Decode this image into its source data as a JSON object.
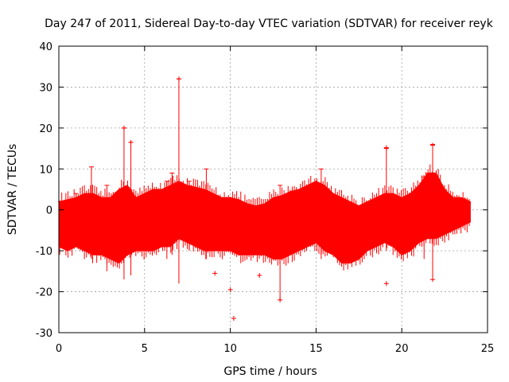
{
  "chart_data": {
    "type": "scatter",
    "title": "Day 247 of 2011, Sidereal Day-to-day VTEC variation (SDTVAR) for receiver reyk",
    "xlabel": "GPS time / hours",
    "ylabel": "SDTVAR / TECUs",
    "xlim": [
      0,
      25
    ],
    "ylim": [
      -30,
      40
    ],
    "xticks": [
      0,
      5,
      10,
      15,
      20,
      25
    ],
    "yticks": [
      -30,
      -20,
      -10,
      0,
      10,
      20,
      30,
      40
    ],
    "grid": true,
    "series_color": "#ff0000",
    "marker": "plus",
    "envelope": {
      "hours": [
        0,
        0.5,
        1,
        1.5,
        2,
        2.5,
        3,
        3.5,
        4,
        4.5,
        5,
        5.5,
        6,
        6.5,
        7,
        7.5,
        8,
        8.5,
        9,
        9.5,
        10,
        10.5,
        11,
        11.5,
        12,
        12.5,
        13,
        13.5,
        14,
        14.5,
        15,
        15.5,
        16,
        16.5,
        17,
        17.5,
        18,
        18.5,
        19,
        19.5,
        20,
        20.5,
        21,
        21.5,
        22,
        22.5,
        23,
        23.5,
        24
      ],
      "upper": [
        2,
        2.5,
        3,
        4,
        4,
        3,
        3,
        5,
        6,
        3,
        4,
        5,
        5,
        6,
        7,
        6,
        5.5,
        5,
        4,
        3,
        3,
        2.5,
        1.5,
        1,
        1.5,
        3,
        3.5,
        4.5,
        5,
        6,
        7,
        6,
        4,
        3,
        2,
        1,
        2,
        3,
        4,
        4,
        3,
        4,
        6,
        9,
        9,
        5,
        3,
        3,
        2
      ],
      "lower": [
        -9,
        -10,
        -9,
        -10,
        -11,
        -11,
        -12,
        -13,
        -11,
        -10,
        -10,
        -10,
        -9,
        -9,
        -7,
        -8,
        -9,
        -10,
        -10,
        -10,
        -10,
        -11,
        -11,
        -11,
        -11,
        -12,
        -12,
        -11,
        -10,
        -9,
        -8,
        -10,
        -11,
        -13,
        -13,
        -12,
        -10,
        -9,
        -8,
        -9,
        -11,
        -10,
        -8,
        -7,
        -7,
        -6,
        -5,
        -4,
        -3
      ]
    },
    "spikes": [
      {
        "x": 0.1,
        "low": -8,
        "high": 2
      },
      {
        "x": 1.0,
        "low": -9,
        "high": 4
      },
      {
        "x": 1.9,
        "low": -12,
        "high": 10.5
      },
      {
        "x": 2.8,
        "low": -15,
        "high": 6
      },
      {
        "x": 3.8,
        "low": -17,
        "high": 20
      },
      {
        "x": 4.2,
        "low": -16,
        "high": 16.5
      },
      {
        "x": 6.3,
        "low": -12,
        "high": 7
      },
      {
        "x": 6.6,
        "low": -11,
        "high": 9
      },
      {
        "x": 7.0,
        "low": -18,
        "high": 32
      },
      {
        "x": 7.6,
        "low": -10,
        "high": 7
      },
      {
        "x": 8.6,
        "low": -12,
        "high": 10
      },
      {
        "x": 12.9,
        "low": -22,
        "high": 6
      },
      {
        "x": 15.3,
        "low": -12,
        "high": 10
      },
      {
        "x": 19.1,
        "low": -10,
        "high": 15
      },
      {
        "x": 21.3,
        "low": -12,
        "high": 8
      },
      {
        "x": 21.8,
        "low": -17,
        "high": 16
      },
      {
        "x": 22.5,
        "low": -8,
        "high": 5
      }
    ],
    "outliers": [
      {
        "x": 7.0,
        "y": 32
      },
      {
        "x": 3.8,
        "y": 20
      },
      {
        "x": 4.2,
        "y": 16.5
      },
      {
        "x": 21.8,
        "y": 15.8
      },
      {
        "x": 19.1,
        "y": 15.2
      },
      {
        "x": 9.1,
        "y": -15.5
      },
      {
        "x": 10.0,
        "y": -19.5
      },
      {
        "x": 10.2,
        "y": -26.5
      },
      {
        "x": 11.7,
        "y": -16
      },
      {
        "x": 12.9,
        "y": -22
      },
      {
        "x": 19.1,
        "y": -18
      },
      {
        "x": 21.8,
        "y": -17
      }
    ]
  }
}
